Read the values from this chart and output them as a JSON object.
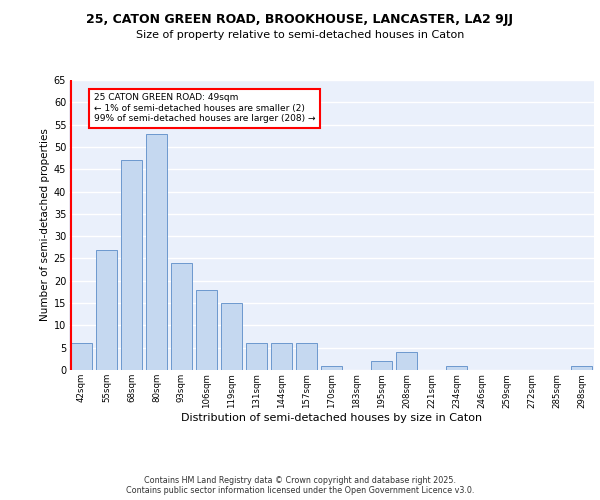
{
  "title": "25, CATON GREEN ROAD, BROOKHOUSE, LANCASTER, LA2 9JJ",
  "subtitle": "Size of property relative to semi-detached houses in Caton",
  "xlabel": "Distribution of semi-detached houses by size in Caton",
  "ylabel": "Number of semi-detached properties",
  "categories": [
    "42sqm",
    "55sqm",
    "68sqm",
    "80sqm",
    "93sqm",
    "106sqm",
    "119sqm",
    "131sqm",
    "144sqm",
    "157sqm",
    "170sqm",
    "183sqm",
    "195sqm",
    "208sqm",
    "221sqm",
    "234sqm",
    "246sqm",
    "259sqm",
    "272sqm",
    "285sqm",
    "298sqm"
  ],
  "values": [
    6,
    27,
    47,
    53,
    24,
    18,
    15,
    6,
    6,
    6,
    1,
    0,
    2,
    4,
    0,
    1,
    0,
    0,
    0,
    0,
    1
  ],
  "bar_color": "#c5d8f0",
  "bar_edge_color": "#5b8cc8",
  "vline_color": "red",
  "annotation_text": "25 CATON GREEN ROAD: 49sqm\n← 1% of semi-detached houses are smaller (2)\n99% of semi-detached houses are larger (208) →",
  "annotation_box_color": "white",
  "annotation_box_edge_color": "red",
  "footer_text": "Contains HM Land Registry data © Crown copyright and database right 2025.\nContains public sector information licensed under the Open Government Licence v3.0.",
  "bg_color": "#eaf0fb",
  "grid_color": "white",
  "ylim": [
    0,
    65
  ],
  "yticks": [
    0,
    5,
    10,
    15,
    20,
    25,
    30,
    35,
    40,
    45,
    50,
    55,
    60,
    65
  ]
}
